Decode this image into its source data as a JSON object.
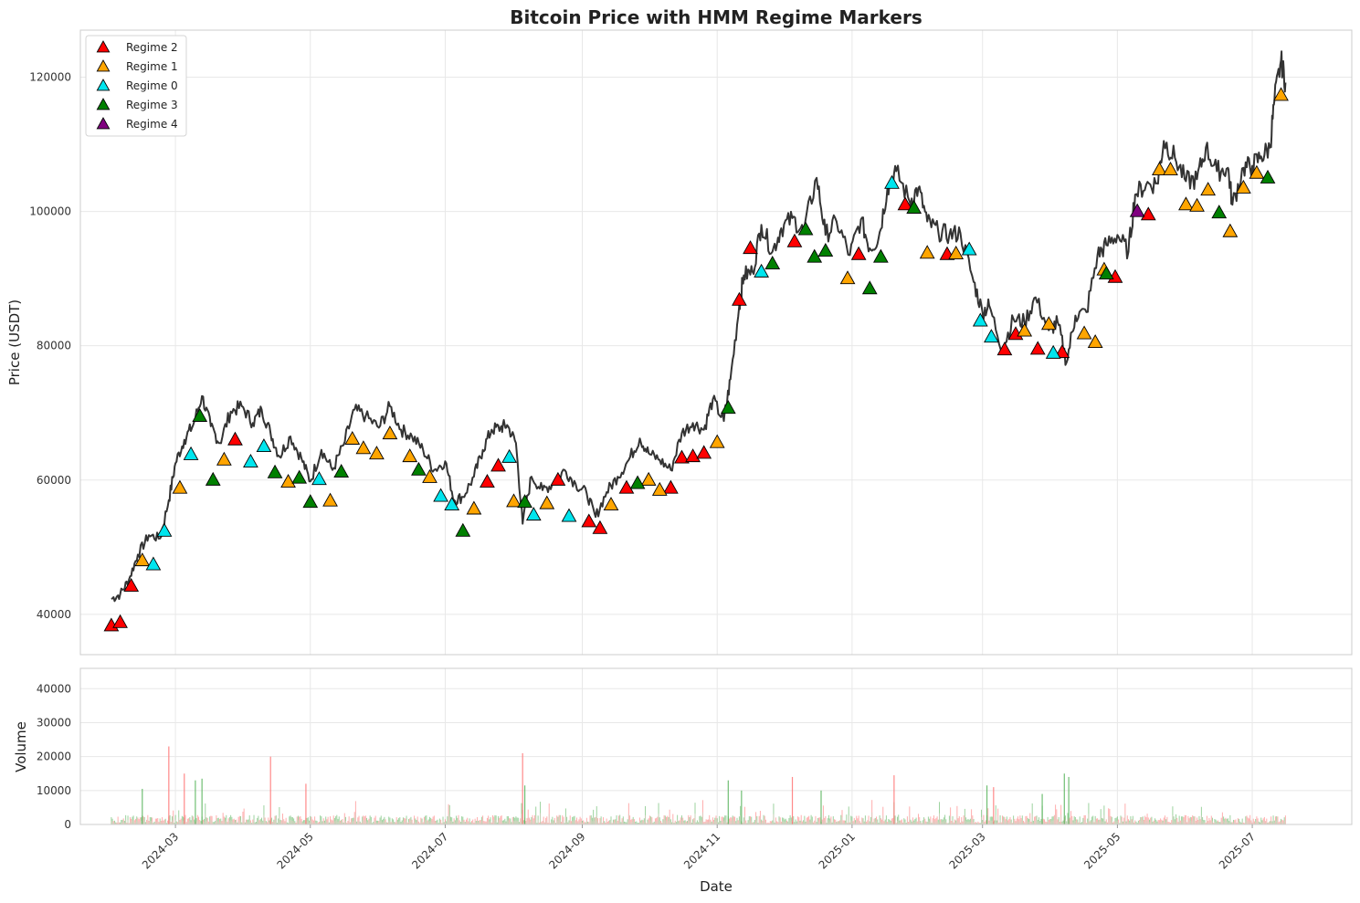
{
  "chart_data": [
    {
      "type": "line",
      "title": "Bitcoin Price with HMM Regime Markers",
      "ylabel": "Price (USDT)",
      "xlabel": "",
      "xlim": [
        "2024-01-18",
        "2025-08-15"
      ],
      "ylim": [
        34000,
        127000
      ],
      "y_ticks": [
        40000,
        60000,
        80000,
        100000,
        120000
      ],
      "grid": true,
      "legend_position": "top-left",
      "line_color": "#333333",
      "price_series": {
        "name": "",
        "x": [
          "2024-02-01",
          "2024-02-05",
          "2024-02-09",
          "2024-02-13",
          "2024-02-18",
          "2024-02-23",
          "2024-02-27",
          "2024-03-01",
          "2024-03-05",
          "2024-03-09",
          "2024-03-13",
          "2024-03-17",
          "2024-03-21",
          "2024-03-26",
          "2024-03-31",
          "2024-04-05",
          "2024-04-09",
          "2024-04-13",
          "2024-04-17",
          "2024-04-22",
          "2024-04-27",
          "2024-05-01",
          "2024-05-06",
          "2024-05-11",
          "2024-05-16",
          "2024-05-21",
          "2024-05-26",
          "2024-06-01",
          "2024-06-06",
          "2024-06-11",
          "2024-06-16",
          "2024-06-21",
          "2024-06-26",
          "2024-07-01",
          "2024-07-05",
          "2024-07-09",
          "2024-07-14",
          "2024-07-18",
          "2024-07-22",
          "2024-07-26",
          "2024-07-29",
          "2024-08-02",
          "2024-08-05",
          "2024-08-09",
          "2024-08-14",
          "2024-08-19",
          "2024-08-24",
          "2024-08-29",
          "2024-09-03",
          "2024-09-07",
          "2024-09-12",
          "2024-09-17",
          "2024-09-22",
          "2024-09-27",
          "2024-10-01",
          "2024-10-06",
          "2024-10-11",
          "2024-10-16",
          "2024-10-21",
          "2024-10-26",
          "2024-10-30",
          "2024-11-04",
          "2024-11-07",
          "2024-11-11",
          "2024-11-13",
          "2024-11-17",
          "2024-11-21",
          "2024-11-26",
          "2024-11-30",
          "2024-12-05",
          "2024-12-10",
          "2024-12-16",
          "2024-12-20",
          "2024-12-25",
          "2024-12-31",
          "2025-01-05",
          "2025-01-09",
          "2025-01-13",
          "2025-01-17",
          "2025-01-21",
          "2025-01-27",
          "2025-01-31",
          "2025-02-04",
          "2025-02-09",
          "2025-02-14",
          "2025-02-19",
          "2025-02-25",
          "2025-03-01",
          "2025-03-04",
          "2025-03-10",
          "2025-03-15",
          "2025-03-20",
          "2025-03-25",
          "2025-03-31",
          "2025-04-04",
          "2025-04-08",
          "2025-04-12",
          "2025-04-17",
          "2025-04-22",
          "2025-04-26",
          "2025-05-01",
          "2025-05-06",
          "2025-05-09",
          "2025-05-14",
          "2025-05-19",
          "2025-05-22",
          "2025-05-27",
          "2025-06-01",
          "2025-06-06",
          "2025-06-10",
          "2025-06-15",
          "2025-06-20",
          "2025-06-22",
          "2025-06-27",
          "2025-07-01",
          "2025-07-05",
          "2025-07-09",
          "2025-07-11",
          "2025-07-14",
          "2025-07-16"
        ],
        "y": [
          42300,
          43000,
          45200,
          48900,
          51800,
          51300,
          57000,
          62500,
          66000,
          68200,
          72500,
          68000,
          65500,
          70200,
          71000,
          68500,
          70500,
          67000,
          63500,
          66500,
          63200,
          59800,
          64500,
          61500,
          65200,
          70500,
          69500,
          67800,
          71000,
          67500,
          66500,
          64500,
          61500,
          62800,
          57000,
          57500,
          60500,
          64500,
          67500,
          67800,
          68200,
          65500,
          53500,
          60500,
          58500,
          59500,
          61500,
          59400,
          58000,
          54500,
          58200,
          60500,
          63000,
          66200,
          64000,
          63000,
          61500,
          67000,
          68500,
          67500,
          72000,
          68800,
          75000,
          86000,
          90500,
          91000,
          98000,
          94000,
          97500,
          99000,
          97000,
          105000,
          96500,
          98500,
          93500,
          98800,
          94500,
          96000,
          103500,
          106000,
          101500,
          103500,
          98500,
          97000,
          96500,
          96800,
          89500,
          85000,
          86000,
          79500,
          84000,
          83500,
          87200,
          82300,
          83500,
          77500,
          84500,
          85000,
          93500,
          95000,
          96500,
          94000,
          102500,
          104000,
          104200,
          110500,
          108000,
          104500,
          104800,
          109500,
          106000,
          106500,
          101000,
          106500,
          106800,
          108200,
          109500,
          116500,
          122500,
          119200
        ]
      },
      "markers": [
        {
          "name": "Regime 2",
          "color": "#ff0000",
          "points": [
            [
              "2024-02-01",
              38300
            ],
            [
              "2024-02-05",
              38800
            ],
            [
              "2024-02-10",
              44200
            ],
            [
              "2024-03-28",
              66000
            ],
            [
              "2024-07-20",
              59700
            ],
            [
              "2024-07-25",
              62100
            ],
            [
              "2024-08-21",
              60000
            ],
            [
              "2024-09-04",
              53800
            ],
            [
              "2024-09-09",
              52800
            ],
            [
              "2024-09-21",
              58800
            ],
            [
              "2024-10-11",
              58800
            ],
            [
              "2024-10-16",
              63300
            ],
            [
              "2024-10-21",
              63500
            ],
            [
              "2024-10-26",
              64000
            ],
            [
              "2024-11-11",
              86800
            ],
            [
              "2024-11-16",
              94500
            ],
            [
              "2024-12-06",
              95500
            ],
            [
              "2025-01-04",
              93600
            ],
            [
              "2025-01-25",
              101000
            ],
            [
              "2025-02-13",
              93600
            ],
            [
              "2025-03-11",
              79400
            ],
            [
              "2025-03-16",
              81700
            ],
            [
              "2025-03-26",
              79500
            ],
            [
              "2025-04-06",
              79000
            ],
            [
              "2025-04-30",
              90200
            ],
            [
              "2025-05-15",
              99500
            ]
          ]
        },
        {
          "name": "Regime 1",
          "color": "#ffa500",
          "points": [
            [
              "2024-02-15",
              48000
            ],
            [
              "2024-03-03",
              58800
            ],
            [
              "2024-03-23",
              63000
            ],
            [
              "2024-04-21",
              59700
            ],
            [
              "2024-05-10",
              56900
            ],
            [
              "2024-05-20",
              66100
            ],
            [
              "2024-05-25",
              64700
            ],
            [
              "2024-05-31",
              63900
            ],
            [
              "2024-06-06",
              66900
            ],
            [
              "2024-06-15",
              63500
            ],
            [
              "2024-06-24",
              60400
            ],
            [
              "2024-07-14",
              55700
            ],
            [
              "2024-08-01",
              56800
            ],
            [
              "2024-08-16",
              56500
            ],
            [
              "2024-09-14",
              56300
            ],
            [
              "2024-10-01",
              60000
            ],
            [
              "2024-10-06",
              58500
            ],
            [
              "2024-11-01",
              65600
            ],
            [
              "2024-12-30",
              90000
            ],
            [
              "2025-02-04",
              93800
            ],
            [
              "2025-02-17",
              93700
            ],
            [
              "2025-03-20",
              82200
            ],
            [
              "2025-03-31",
              83200
            ],
            [
              "2025-04-16",
              81800
            ],
            [
              "2025-04-21",
              80500
            ],
            [
              "2025-04-25",
              91300
            ],
            [
              "2025-05-20",
              106200
            ],
            [
              "2025-05-25",
              106200
            ],
            [
              "2025-06-01",
              101000
            ],
            [
              "2025-06-06",
              100800
            ],
            [
              "2025-06-11",
              103200
            ],
            [
              "2025-06-21",
              97000
            ],
            [
              "2025-06-27",
              103500
            ],
            [
              "2025-07-03",
              105700
            ],
            [
              "2025-07-14",
              117300
            ]
          ]
        },
        {
          "name": "Regime 0",
          "color": "#00e5ee",
          "points": [
            [
              "2024-02-20",
              47400
            ],
            [
              "2024-02-25",
              52400
            ],
            [
              "2024-03-08",
              63800
            ],
            [
              "2024-04-04",
              62700
            ],
            [
              "2024-04-10",
              65000
            ],
            [
              "2024-05-05",
              60100
            ],
            [
              "2024-06-29",
              57600
            ],
            [
              "2024-07-04",
              56300
            ],
            [
              "2024-07-30",
              63400
            ],
            [
              "2024-08-10",
              54800
            ],
            [
              "2024-08-26",
              54600
            ],
            [
              "2024-11-21",
              91000
            ],
            [
              "2025-01-19",
              104200
            ],
            [
              "2025-02-23",
              94300
            ],
            [
              "2025-02-28",
              83700
            ],
            [
              "2025-03-05",
              81300
            ],
            [
              "2025-04-02",
              78900
            ]
          ]
        },
        {
          "name": "Regime 3",
          "color": "#008000",
          "points": [
            [
              "2024-03-12",
              69500
            ],
            [
              "2024-03-18",
              60000
            ],
            [
              "2024-04-15",
              61100
            ],
            [
              "2024-04-26",
              60300
            ],
            [
              "2024-05-01",
              56700
            ],
            [
              "2024-05-15",
              61200
            ],
            [
              "2024-06-19",
              61500
            ],
            [
              "2024-07-09",
              52400
            ],
            [
              "2024-08-06",
              56700
            ],
            [
              "2024-09-26",
              59500
            ],
            [
              "2024-11-06",
              70700
            ],
            [
              "2024-11-26",
              92200
            ],
            [
              "2024-12-11",
              97300
            ],
            [
              "2024-12-15",
              93200
            ],
            [
              "2024-12-20",
              94100
            ],
            [
              "2025-01-09",
              88500
            ],
            [
              "2025-01-14",
              93200
            ],
            [
              "2025-01-29",
              100500
            ],
            [
              "2025-04-26",
              90700
            ],
            [
              "2025-06-16",
              99800
            ],
            [
              "2025-07-08",
              105000
            ]
          ]
        },
        {
          "name": "Regime 4",
          "color": "#800080",
          "points": [
            [
              "2025-05-10",
              100000
            ]
          ]
        }
      ]
    },
    {
      "type": "bar",
      "ylabel": "Volume",
      "xlabel": "Date",
      "ylim": [
        0,
        46000
      ],
      "y_ticks": [
        0,
        10000,
        20000,
        30000,
        40000
      ],
      "x_ticks": [
        "2024-03-01",
        "2024-05-01",
        "2024-07-01",
        "2024-09-01",
        "2024-11-01",
        "2025-01-01",
        "2025-03-01",
        "2025-05-01",
        "2025-07-01"
      ],
      "x_tick_labels": [
        "2024-03",
        "2024-05",
        "2024-07",
        "2024-09",
        "2024-11",
        "2025-01",
        "2025-03",
        "2025-05",
        "2025-07"
      ],
      "up_color": "#4caf50",
      "down_color": "#ff6b6b",
      "spikes": [
        {
          "x": "2024-02-27",
          "value": 23000,
          "dir": "down"
        },
        {
          "x": "2024-03-05",
          "value": 15000,
          "dir": "down"
        },
        {
          "x": "2024-03-10",
          "value": 13000,
          "dir": "up"
        },
        {
          "x": "2024-03-13",
          "value": 13500,
          "dir": "up"
        },
        {
          "x": "2024-02-15",
          "value": 10500,
          "dir": "up"
        },
        {
          "x": "2024-04-13",
          "value": 20000,
          "dir": "down"
        },
        {
          "x": "2024-04-29",
          "value": 12000,
          "dir": "down"
        },
        {
          "x": "2024-08-05",
          "value": 21000,
          "dir": "down"
        },
        {
          "x": "2024-08-06",
          "value": 11500,
          "dir": "up"
        },
        {
          "x": "2024-11-06",
          "value": 13000,
          "dir": "up"
        },
        {
          "x": "2024-11-12",
          "value": 10000,
          "dir": "up"
        },
        {
          "x": "2024-12-05",
          "value": 14000,
          "dir": "down"
        },
        {
          "x": "2024-12-18",
          "value": 10000,
          "dir": "up"
        },
        {
          "x": "2025-01-20",
          "value": 14500,
          "dir": "down"
        },
        {
          "x": "2025-03-03",
          "value": 11500,
          "dir": "up"
        },
        {
          "x": "2025-03-06",
          "value": 11000,
          "dir": "down"
        },
        {
          "x": "2025-04-07",
          "value": 15000,
          "dir": "up"
        },
        {
          "x": "2025-04-09",
          "value": 14000,
          "dir": "up"
        },
        {
          "x": "2025-03-28",
          "value": 9000,
          "dir": "up"
        }
      ]
    }
  ]
}
